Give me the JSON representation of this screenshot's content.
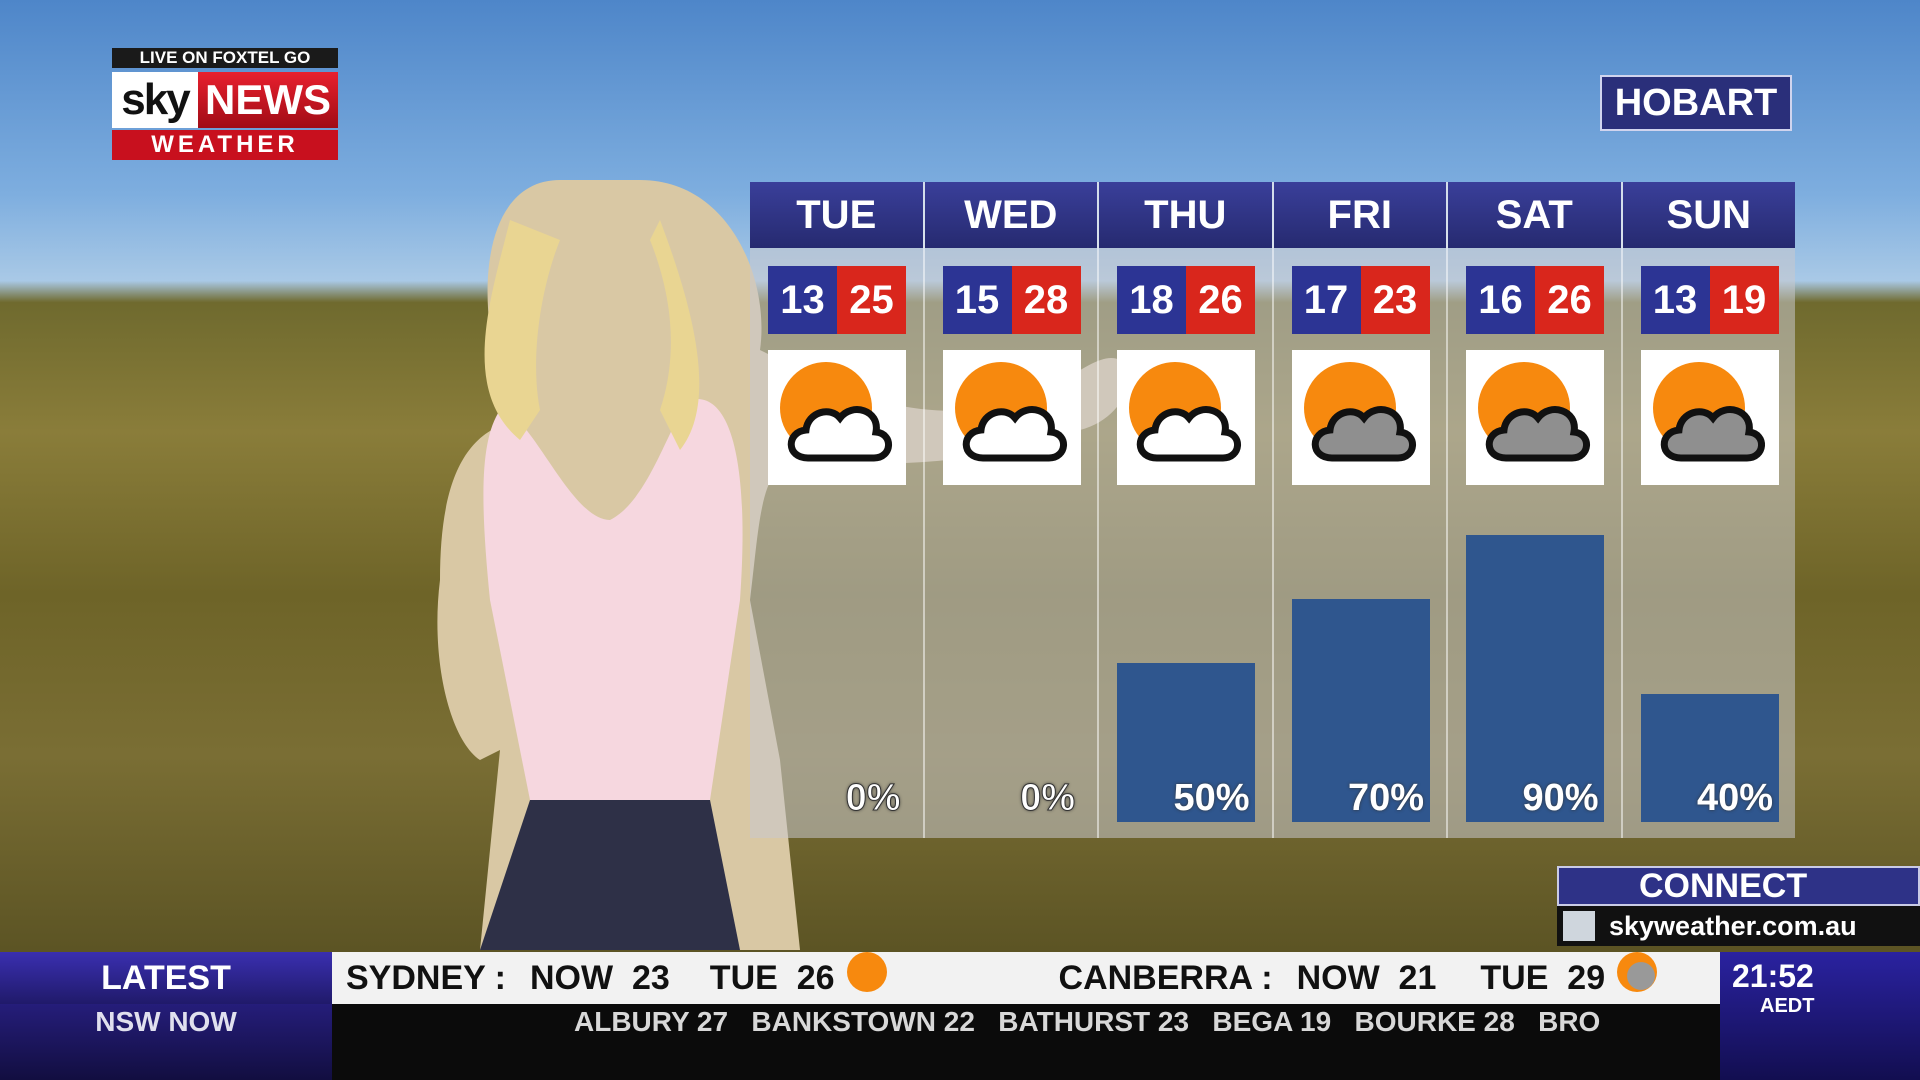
{
  "logo": {
    "live": "LIVE ON FOXTEL GO",
    "sky": "sky",
    "news": "NEWS",
    "weather": "WEATHER"
  },
  "city": "HOBART",
  "forecast": [
    {
      "day": "TUE",
      "low": "13",
      "high": "25",
      "icon": "sun-behind-cloud",
      "rain": "0%",
      "rain_value": 0
    },
    {
      "day": "WED",
      "low": "15",
      "high": "28",
      "icon": "sun-behind-cloud",
      "rain": "0%",
      "rain_value": 0
    },
    {
      "day": "THU",
      "low": "18",
      "high": "26",
      "icon": "sun-behind-cloud",
      "rain": "50%",
      "rain_value": 50
    },
    {
      "day": "FRI",
      "low": "17",
      "high": "23",
      "icon": "sun-behind-grey-cloud",
      "rain": "70%",
      "rain_value": 70
    },
    {
      "day": "SAT",
      "low": "16",
      "high": "26",
      "icon": "sun-behind-grey-cloud",
      "rain": "90%",
      "rain_value": 90
    },
    {
      "day": "SUN",
      "low": "13",
      "high": "19",
      "icon": "sun-behind-grey-cloud",
      "rain": "40%",
      "rain_value": 40
    }
  ],
  "colors": {
    "low": "#2c3494",
    "high": "#d9261c",
    "bar": "#2f568e",
    "sun": "#f7890e"
  },
  "connect": {
    "title": "CONNECT",
    "url": "skyweather.com.au"
  },
  "ticker": {
    "latest": "LATEST",
    "section": "NSW NOW",
    "top": [
      {
        "city": "SYDNEY :",
        "now": "NOW  23",
        "day": "TUE  26",
        "icon": "sun"
      },
      {
        "city": "CANBERRA :",
        "now": "NOW  21",
        "day": "TUE  29",
        "icon": "sun-cloud-rain"
      }
    ],
    "bottom": "ALBURY 27   BANKSTOWN 22   BATHURST 23   BEGA 19   BOURKE 28   BRO"
  },
  "clock": {
    "time": "21:52",
    "zone": "AEDT"
  }
}
